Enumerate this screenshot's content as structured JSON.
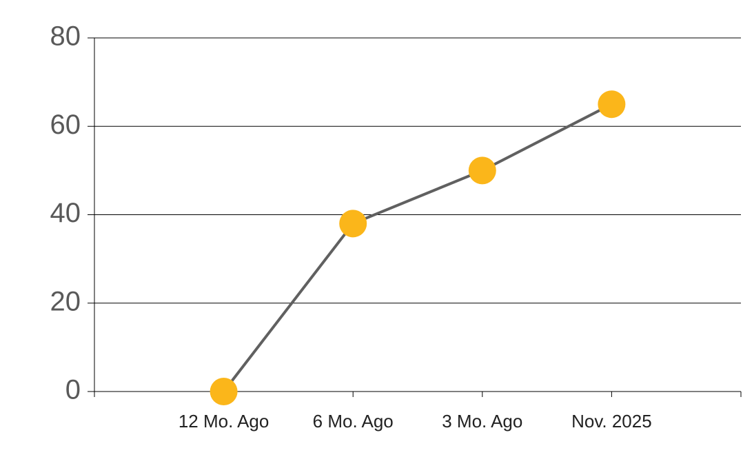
{
  "chart_data": {
    "type": "line",
    "categories": [
      "12 Mo. Ago",
      "6 Mo. Ago",
      "3 Mo. Ago",
      "Nov. 2025"
    ],
    "values": [
      0,
      38,
      50,
      65
    ],
    "line_color": "#606060",
    "marker_color": "#fbb61a",
    "ylim": [
      0,
      80
    ],
    "yticks": [
      0,
      20,
      40,
      60,
      80
    ],
    "grid": true
  }
}
